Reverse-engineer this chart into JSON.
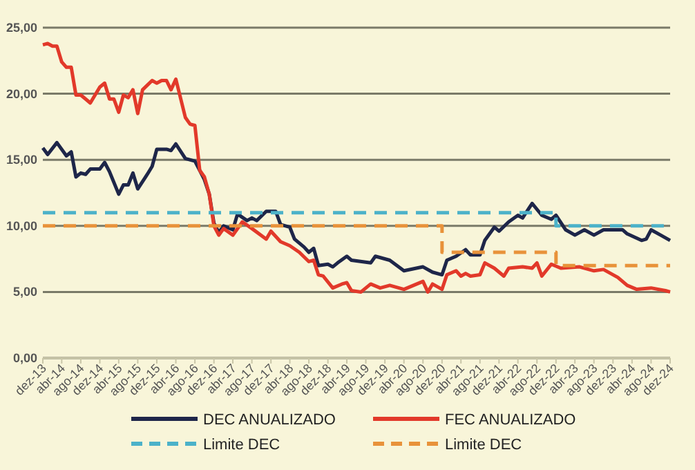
{
  "chart_data": {
    "type": "line",
    "xlim": [
      "2013-12",
      "2024-12"
    ],
    "xticks": [
      {
        "value": "2013-12",
        "label": "dez-13"
      },
      {
        "value": "2014-04",
        "label": "abr-14"
      },
      {
        "value": "2014-08",
        "label": "ago-14"
      },
      {
        "value": "2014-12",
        "label": "dez-14"
      },
      {
        "value": "2015-04",
        "label": "abr-15"
      },
      {
        "value": "2015-08",
        "label": "ago-15"
      },
      {
        "value": "2015-12",
        "label": "dez-15"
      },
      {
        "value": "2016-04",
        "label": "abr-16"
      },
      {
        "value": "2016-08",
        "label": "ago-16"
      },
      {
        "value": "2016-12",
        "label": "dez-16"
      },
      {
        "value": "2017-04",
        "label": "abr-17"
      },
      {
        "value": "2017-08",
        "label": "ago-17"
      },
      {
        "value": "2017-12",
        "label": "dez-17"
      },
      {
        "value": "2018-04",
        "label": "abr-18"
      },
      {
        "value": "2018-08",
        "label": "ago-18"
      },
      {
        "value": "2018-12",
        "label": "dez-18"
      },
      {
        "value": "2019-04",
        "label": "abr-19"
      },
      {
        "value": "2019-08",
        "label": "ago-19"
      },
      {
        "value": "2019-12",
        "label": "dez-19"
      },
      {
        "value": "2020-04",
        "label": "abr-20"
      },
      {
        "value": "2020-08",
        "label": "ago-20"
      },
      {
        "value": "2020-12",
        "label": "dez-20"
      },
      {
        "value": "2021-04",
        "label": "abr-21"
      },
      {
        "value": "2021-08",
        "label": "ago-21"
      },
      {
        "value": "2021-12",
        "label": "dez-21"
      },
      {
        "value": "2022-04",
        "label": "abr-22"
      },
      {
        "value": "2022-08",
        "label": "ago-22"
      },
      {
        "value": "2022-12",
        "label": "dez-22"
      },
      {
        "value": "2023-04",
        "label": "abr-23"
      },
      {
        "value": "2023-08",
        "label": "ago-23"
      },
      {
        "value": "2023-12",
        "label": "dez-23"
      },
      {
        "value": "2024-04",
        "label": "abr-24"
      },
      {
        "value": "2024-08",
        "label": "ago-24"
      },
      {
        "value": "2024-12",
        "label": "dez-24"
      }
    ],
    "ylim": [
      0,
      25
    ],
    "yticks": [
      {
        "value": 0,
        "label": "0,00"
      },
      {
        "value": 5,
        "label": "5,00"
      },
      {
        "value": 10,
        "label": "10,00"
      },
      {
        "value": 15,
        "label": "15,00"
      },
      {
        "value": 20,
        "label": "20,00"
      },
      {
        "value": 25,
        "label": "25,00"
      }
    ],
    "grid": "y",
    "legend": "bottom",
    "marker": "none",
    "series": [
      {
        "name": "DEC ANUALIZADO",
        "color": "#1e2649",
        "line_style": "solid",
        "x": [
          "2013-12",
          "2014-01",
          "2014-03",
          "2014-05",
          "2014-06",
          "2014-07",
          "2014-08",
          "2014-09",
          "2014-10",
          "2014-12",
          "2015-01",
          "2015-02",
          "2015-04",
          "2015-05",
          "2015-06",
          "2015-07",
          "2015-08",
          "2015-10",
          "2015-11",
          "2015-12",
          "2016-02",
          "2016-03",
          "2016-04",
          "2016-06",
          "2016-08",
          "2016-09",
          "2016-10",
          "2016-11",
          "2016-12",
          "2017-01",
          "2017-02",
          "2017-04",
          "2017-05",
          "2017-07",
          "2017-08",
          "2017-09",
          "2017-11",
          "2018-01",
          "2018-02",
          "2018-04",
          "2018-05",
          "2018-07",
          "2018-08",
          "2018-09",
          "2018-10",
          "2018-12",
          "2019-01",
          "2019-02",
          "2019-04",
          "2019-05",
          "2019-09",
          "2019-10",
          "2020-01",
          "2020-04",
          "2020-08",
          "2020-10",
          "2020-12",
          "2021-01",
          "2021-03",
          "2021-05",
          "2021-06",
          "2021-08",
          "2021-09",
          "2021-11",
          "2021-12",
          "2022-02",
          "2022-04",
          "2022-05",
          "2022-07",
          "2022-09",
          "2022-11",
          "2022-12",
          "2023-02",
          "2023-04",
          "2023-06",
          "2023-08",
          "2023-10",
          "2023-12",
          "2024-02",
          "2024-03",
          "2024-06",
          "2024-07",
          "2024-08",
          "2024-10",
          "2024-12"
        ],
        "values": [
          15.9,
          15.4,
          16.3,
          15.3,
          15.6,
          13.7,
          14.0,
          13.9,
          14.3,
          14.3,
          14.8,
          14.1,
          12.4,
          13.1,
          13.1,
          14.0,
          12.8,
          13.9,
          14.5,
          15.8,
          15.8,
          15.7,
          16.2,
          15.1,
          14.9,
          14.2,
          13.5,
          12.4,
          10.2,
          9.5,
          10.0,
          9.7,
          10.9,
          10.4,
          10.6,
          10.4,
          11.1,
          11.1,
          10.1,
          9.9,
          9.0,
          8.4,
          8.0,
          8.3,
          7.0,
          7.1,
          6.9,
          7.2,
          7.7,
          7.4,
          7.2,
          7.7,
          7.4,
          6.6,
          6.9,
          6.5,
          6.3,
          7.4,
          7.7,
          8.2,
          7.8,
          7.8,
          8.9,
          9.9,
          9.6,
          10.3,
          10.8,
          10.6,
          11.7,
          10.8,
          10.5,
          10.8,
          9.7,
          9.3,
          9.7,
          9.3,
          9.7,
          9.7,
          9.7,
          9.4,
          8.9,
          9.0,
          9.7,
          9.3,
          8.9
        ]
      },
      {
        "name": "FEC ANUALIZADO",
        "color": "#e2392a",
        "line_style": "solid",
        "x": [
          "2013-12",
          "2014-01",
          "2014-02",
          "2014-03",
          "2014-04",
          "2014-05",
          "2014-06",
          "2014-07",
          "2014-08",
          "2014-09",
          "2014-10",
          "2014-12",
          "2015-01",
          "2015-02",
          "2015-03",
          "2015-04",
          "2015-05",
          "2015-06",
          "2015-07",
          "2015-08",
          "2015-09",
          "2015-11",
          "2015-12",
          "2016-01",
          "2016-02",
          "2016-03",
          "2016-04",
          "2016-06",
          "2016-07",
          "2016-08",
          "2016-09",
          "2016-10",
          "2016-11",
          "2016-12",
          "2017-01",
          "2017-02",
          "2017-04",
          "2017-06",
          "2017-08",
          "2017-11",
          "2017-12",
          "2018-02",
          "2018-04",
          "2018-06",
          "2018-08",
          "2018-09",
          "2018-10",
          "2018-11",
          "2019-01",
          "2019-03",
          "2019-04",
          "2019-05",
          "2019-07",
          "2019-09",
          "2019-11",
          "2020-01",
          "2020-04",
          "2020-08",
          "2020-09",
          "2020-10",
          "2020-12",
          "2021-01",
          "2021-03",
          "2021-04",
          "2021-05",
          "2021-06",
          "2021-08",
          "2021-09",
          "2021-11",
          "2022-01",
          "2022-02",
          "2022-05",
          "2022-07",
          "2022-08",
          "2022-09",
          "2022-11",
          "2023-01",
          "2023-05",
          "2023-08",
          "2023-10",
          "2024-01",
          "2024-03",
          "2024-05",
          "2024-08",
          "2024-11",
          "2024-12"
        ],
        "values": [
          23.7,
          23.8,
          23.6,
          23.6,
          22.4,
          22.0,
          22.0,
          19.9,
          19.9,
          19.6,
          19.3,
          20.5,
          20.8,
          19.6,
          19.6,
          18.6,
          19.9,
          19.7,
          20.3,
          18.5,
          20.3,
          21.0,
          20.8,
          21.0,
          21.0,
          20.3,
          21.1,
          18.2,
          17.7,
          17.6,
          14.2,
          13.7,
          12.4,
          10.0,
          9.3,
          9.8,
          9.3,
          10.3,
          9.8,
          9.0,
          9.6,
          8.8,
          8.5,
          8.0,
          7.3,
          7.4,
          6.3,
          6.2,
          5.3,
          5.6,
          5.7,
          5.1,
          5.0,
          5.6,
          5.3,
          5.5,
          5.2,
          5.8,
          5.0,
          5.6,
          5.2,
          6.3,
          6.6,
          6.2,
          6.4,
          6.2,
          6.3,
          7.2,
          6.8,
          6.2,
          6.8,
          6.9,
          6.8,
          7.2,
          6.2,
          7.1,
          6.8,
          6.9,
          6.6,
          6.7,
          6.1,
          5.5,
          5.2,
          5.3,
          5.1,
          5.0
        ]
      },
      {
        "name": "Limite DEC",
        "type": "step",
        "color": "#4cb2c9",
        "line_style": "dashed",
        "x": [
          "2013-12",
          "2022-12",
          "2024-12"
        ],
        "values": [
          11,
          10,
          10
        ]
      },
      {
        "name": "Limite DEC",
        "type": "step",
        "color": "#e8923a",
        "line_style": "dashed",
        "x": [
          "2013-12",
          "2020-12",
          "2022-12",
          "2024-12"
        ],
        "values": [
          10,
          8,
          7,
          7
        ]
      }
    ]
  }
}
